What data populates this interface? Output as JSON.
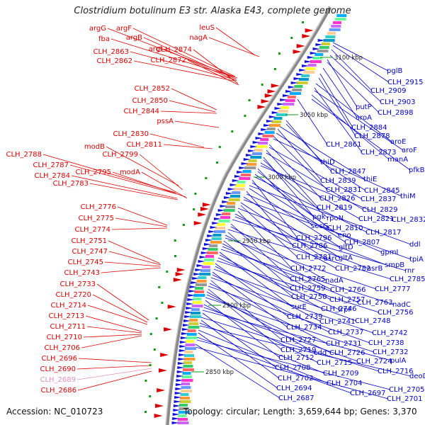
{
  "title": "Clostridium botulinum E3 str. Alaska E43, complete genome",
  "footer": {
    "accession": "Accession: NC_010723",
    "topology": "Topology: circular; Length: 3,659,644 bp; Genes: 3,370"
  },
  "colors": {
    "forward_strand": "#dd0000",
    "reverse_strand": "#0000cc",
    "rna_label": "#e48fc0",
    "backbone": "#888888",
    "kbp_label": "#222222"
  },
  "kbp_ticks": [
    "3100 kbp",
    "3050 kbp",
    "3000 kbp",
    "2950 kbp",
    "2900 kbp",
    "2850 kbp"
  ],
  "left_labels": [
    "argG",
    "argF",
    "fba",
    "argB",
    "argI",
    "CLH_2863",
    "CLH_2862",
    "CLH_2874",
    "CLH_2872",
    "leuS",
    "nagA",
    "CLH_2852",
    "CLH_2850",
    "CLH_2844",
    "pssA",
    "CLH_2830",
    "CLH_2811",
    "modB",
    "CLH_2799",
    "CLH_2788",
    "CLH_2787",
    "CLH_2795",
    "modA",
    "CLH_2784",
    "CLH_2783",
    "CLH_2776",
    "CLH_2775",
    "CLH_2774",
    "CLH_2751",
    "CLH_2747",
    "CLH_2745",
    "CLH_2743",
    "CLH_2733",
    "CLH_2720",
    "CLH_2714",
    "CLH_2713",
    "CLH_2711",
    "CLH_2710",
    "CLH_2706",
    "CLH_2696",
    "CLH_2690",
    "CLH_2689",
    "CLH_2686"
  ],
  "right_labels": [
    "pglB",
    "CLH_2915",
    "CLH_2909",
    "CLH_2903",
    "putP",
    "CLH_2898",
    "aroA",
    "CLH_2884",
    "CLH_2878",
    "aroE",
    "CLH_2861",
    "CLH_2873",
    "aroF",
    "manA",
    "pfkB",
    "thiD",
    "CLH_2847",
    "thiE",
    "CLH_2839",
    "CLH_2845",
    "CLH_2831",
    "thiM",
    "CLH_2826",
    "CLH_2837",
    "CLH_2819",
    "CLH_2829",
    "pgk",
    "rpoN",
    "CLH_2821",
    "CLH_2832",
    "secG",
    "CLH_2810",
    "eno",
    "CLH_2817",
    "CLH_2796",
    "CLH_2807",
    "ddl",
    "gltD",
    "CLH_2786",
    "gpmI",
    "gltA",
    "tpiA",
    "asrC",
    "CLH_2781",
    "smpB",
    "CLH_2772",
    "CLH_2782",
    "asrB",
    "rnr",
    "CLH_2765",
    "nadA",
    "CLH_2785",
    "CLH_2759",
    "CLH_2766",
    "CLH_2777",
    "CLH_2750",
    "CLH_2757",
    "CLH_2763",
    "nadC",
    "surE",
    "CLH_2746",
    "trpF",
    "CLH_2756",
    "CLH_2739",
    "CLH_2741",
    "CLH_2748",
    "CLH_2734",
    "CLH_2737",
    "CLH_2742",
    "CLH_2727",
    "CLH_2731",
    "CLH_2738",
    "CLH_2719",
    "cdd",
    "CLH_2726",
    "CLH_2732",
    "CLH_2712",
    "CLH_2715",
    "CLH_2724",
    "pulA",
    "CLH_2708",
    "CLH_2716",
    "CLH_2702",
    "CLH_2709",
    "deoD",
    "CLH_2704",
    "CLH_2694",
    "CLH_2697",
    "CLH_2705",
    "CLH_2687",
    "CLH_2701"
  ]
}
